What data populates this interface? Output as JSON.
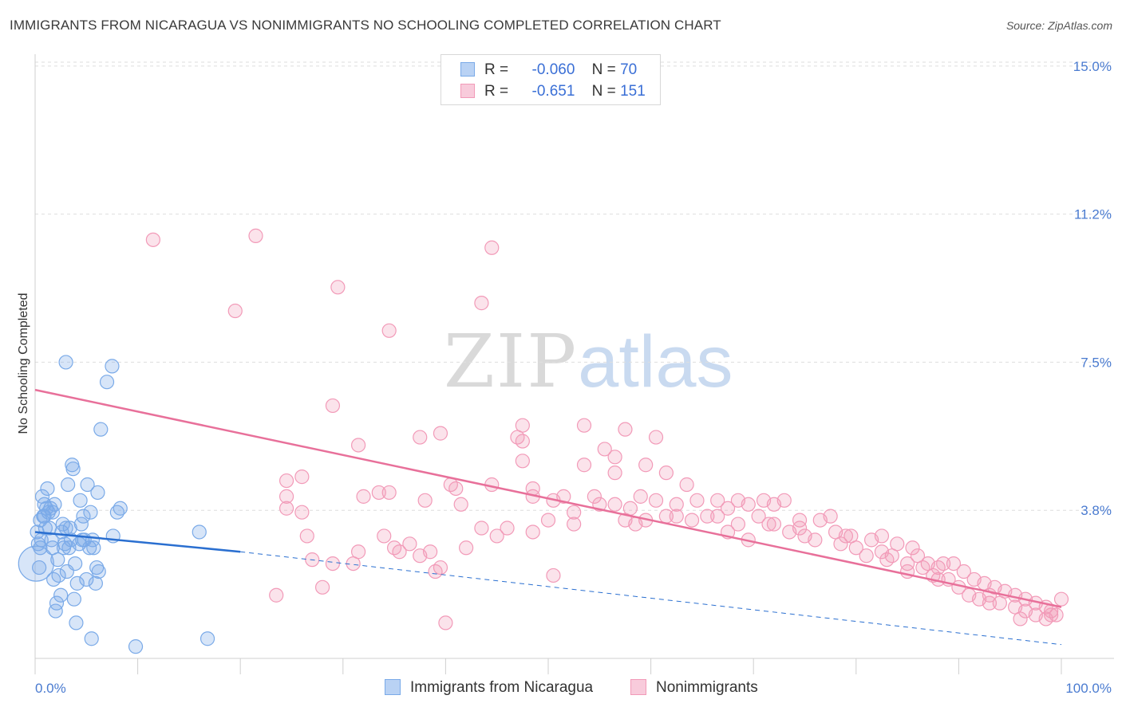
{
  "title": "IMMIGRANTS FROM NICARAGUA VS NONIMMIGRANTS NO SCHOOLING COMPLETED CORRELATION CHART",
  "source": "Source: ZipAtlas.com",
  "watermark": {
    "zip": "ZIP",
    "atlas": "atlas"
  },
  "legend": {
    "r_label": "R =",
    "n_label": "N =",
    "series1": {
      "r": "-0.060",
      "n": "70"
    },
    "series2": {
      "r": "-0.651",
      "n": "151"
    }
  },
  "bottom_legend": {
    "series1": "Immigrants from Nicaragua",
    "series2": "Nonimmigrants"
  },
  "colors": {
    "blue": "#7aaae8",
    "blue_line": "#2a6fd0",
    "pink": "#f29ab8",
    "pink_line": "#e8709a",
    "tick": "#4a7bd0"
  },
  "chart_data": {
    "type": "scatter",
    "xlabel": "",
    "ylabel": "No Schooling Completed",
    "x_ticks": [
      "0.0%",
      "100.0%"
    ],
    "y_ticks": [
      "15.0%",
      "11.2%",
      "7.5%",
      "3.8%"
    ],
    "y_tick_values": [
      15.0,
      11.25,
      7.5,
      3.75
    ],
    "xlim": [
      0,
      100
    ],
    "ylim": [
      0,
      15.3
    ],
    "grid": true,
    "series": [
      {
        "name": "Immigrants from Nicaragua",
        "trend": {
          "x": [
            0,
            20
          ],
          "y": [
            3.2,
            2.7
          ],
          "dashed_to": [
            100,
            0.35
          ]
        },
        "points": [
          [
            0.2,
            3.2
          ],
          [
            0.3,
            2.9
          ],
          [
            0.4,
            2.3
          ],
          [
            0.5,
            3.5
          ],
          [
            0.6,
            3.0
          ],
          [
            0.7,
            4.1
          ],
          [
            0.8,
            3.6
          ],
          [
            0.9,
            3.9
          ],
          [
            1.0,
            3.3
          ],
          [
            1.1,
            3.8
          ],
          [
            1.2,
            4.3
          ],
          [
            1.3,
            3.7
          ],
          [
            1.5,
            3.8
          ],
          [
            1.6,
            3.0
          ],
          [
            1.7,
            2.8
          ],
          [
            1.8,
            2.0
          ],
          [
            1.9,
            3.9
          ],
          [
            2.0,
            1.2
          ],
          [
            2.1,
            1.4
          ],
          [
            2.2,
            2.5
          ],
          [
            2.3,
            2.1
          ],
          [
            2.5,
            1.6
          ],
          [
            2.7,
            3.4
          ],
          [
            2.8,
            2.8
          ],
          [
            3.0,
            3.3
          ],
          [
            3.1,
            2.2
          ],
          [
            3.2,
            4.4
          ],
          [
            3.3,
            2.8
          ],
          [
            3.5,
            3.0
          ],
          [
            3.6,
            4.9
          ],
          [
            3.7,
            4.8
          ],
          [
            3.8,
            1.5
          ],
          [
            3.9,
            2.4
          ],
          [
            4.0,
            0.9
          ],
          [
            4.1,
            1.9
          ],
          [
            4.3,
            2.9
          ],
          [
            4.4,
            4.0
          ],
          [
            4.5,
            3.4
          ],
          [
            4.6,
            3.0
          ],
          [
            4.7,
            3.6
          ],
          [
            4.8,
            3.0
          ],
          [
            5.0,
            2.0
          ],
          [
            5.1,
            4.4
          ],
          [
            5.3,
            2.8
          ],
          [
            5.4,
            3.7
          ],
          [
            5.6,
            3.0
          ],
          [
            5.7,
            2.8
          ],
          [
            5.9,
            1.9
          ],
          [
            6.0,
            2.3
          ],
          [
            6.1,
            4.2
          ],
          [
            6.4,
            5.8
          ],
          [
            7.0,
            7.0
          ],
          [
            7.5,
            7.4
          ],
          [
            7.6,
            3.1
          ],
          [
            8.0,
            3.7
          ],
          [
            8.3,
            3.8
          ],
          [
            9.8,
            0.3
          ],
          [
            16.0,
            3.2
          ],
          [
            16.8,
            0.5
          ],
          [
            3.0,
            7.5
          ],
          [
            5.5,
            0.5
          ],
          [
            2.6,
            3.2
          ],
          [
            1.4,
            3.3
          ],
          [
            0.9,
            3.6
          ],
          [
            0.5,
            2.8
          ],
          [
            2.9,
            2.9
          ],
          [
            3.4,
            3.3
          ],
          [
            6.2,
            2.2
          ],
          [
            1.7,
            3.7
          ],
          [
            0.1,
            2.4
          ]
        ]
      },
      {
        "name": "Nonimmigrants",
        "trend": {
          "x": [
            0,
            100
          ],
          "y": [
            6.8,
            1.3
          ]
        },
        "points": [
          [
            11.5,
            10.6
          ],
          [
            21.5,
            10.7
          ],
          [
            19.5,
            8.8
          ],
          [
            29.5,
            9.4
          ],
          [
            34.5,
            8.3
          ],
          [
            44.5,
            10.4
          ],
          [
            43.5,
            9.0
          ],
          [
            29.0,
            6.4
          ],
          [
            31.5,
            5.4
          ],
          [
            37.5,
            5.6
          ],
          [
            39.5,
            5.7
          ],
          [
            47.0,
            5.6
          ],
          [
            47.5,
            5.5
          ],
          [
            47.5,
            5.9
          ],
          [
            53.5,
            5.9
          ],
          [
            57.5,
            5.8
          ],
          [
            60.5,
            5.6
          ],
          [
            55.5,
            5.3
          ],
          [
            56.5,
            5.1
          ],
          [
            47.5,
            5.0
          ],
          [
            53.5,
            4.9
          ],
          [
            56.5,
            4.7
          ],
          [
            59.5,
            4.9
          ],
          [
            61.5,
            4.7
          ],
          [
            24.5,
            4.5
          ],
          [
            26.0,
            4.6
          ],
          [
            40.5,
            4.4
          ],
          [
            41.0,
            4.3
          ],
          [
            44.5,
            4.4
          ],
          [
            48.5,
            4.3
          ],
          [
            34.5,
            4.2
          ],
          [
            33.5,
            4.2
          ],
          [
            32.0,
            4.1
          ],
          [
            24.5,
            4.1
          ],
          [
            26.0,
            3.7
          ],
          [
            24.5,
            3.8
          ],
          [
            38.0,
            4.0
          ],
          [
            41.5,
            3.9
          ],
          [
            48.5,
            4.1
          ],
          [
            50.5,
            4.0
          ],
          [
            51.5,
            4.1
          ],
          [
            54.5,
            4.1
          ],
          [
            56.5,
            3.9
          ],
          [
            59.0,
            4.1
          ],
          [
            60.5,
            4.0
          ],
          [
            62.5,
            3.9
          ],
          [
            63.5,
            4.4
          ],
          [
            64.5,
            4.0
          ],
          [
            66.5,
            4.0
          ],
          [
            67.5,
            3.8
          ],
          [
            68.5,
            4.0
          ],
          [
            69.5,
            3.9
          ],
          [
            71.0,
            4.0
          ],
          [
            72.0,
            3.9
          ],
          [
            73.0,
            4.0
          ],
          [
            65.5,
            3.6
          ],
          [
            66.5,
            3.6
          ],
          [
            68.5,
            3.4
          ],
          [
            70.5,
            3.6
          ],
          [
            72.0,
            3.4
          ],
          [
            74.5,
            3.5
          ],
          [
            76.5,
            3.5
          ],
          [
            77.5,
            3.6
          ],
          [
            73.5,
            3.2
          ],
          [
            78.0,
            3.2
          ],
          [
            79.5,
            3.1
          ],
          [
            79.0,
            3.1
          ],
          [
            81.5,
            3.0
          ],
          [
            82.5,
            3.1
          ],
          [
            84.0,
            2.9
          ],
          [
            85.5,
            2.8
          ],
          [
            86.0,
            2.6
          ],
          [
            87.0,
            2.4
          ],
          [
            88.0,
            2.3
          ],
          [
            88.5,
            2.4
          ],
          [
            89.5,
            2.4
          ],
          [
            90.5,
            2.2
          ],
          [
            91.5,
            2.0
          ],
          [
            92.5,
            1.9
          ],
          [
            93.5,
            1.8
          ],
          [
            94.5,
            1.7
          ],
          [
            95.5,
            1.6
          ],
          [
            96.5,
            1.5
          ],
          [
            97.5,
            1.4
          ],
          [
            98.5,
            1.3
          ],
          [
            99.0,
            1.2
          ],
          [
            100.0,
            1.5
          ],
          [
            95.5,
            1.3
          ],
          [
            96.5,
            1.2
          ],
          [
            97.5,
            1.1
          ],
          [
            98.5,
            1.0
          ],
          [
            99.5,
            1.1
          ],
          [
            94.0,
            1.4
          ],
          [
            93.0,
            1.6
          ],
          [
            92.0,
            1.5
          ],
          [
            91.0,
            1.6
          ],
          [
            90.0,
            1.8
          ],
          [
            89.0,
            2.0
          ],
          [
            87.5,
            2.1
          ],
          [
            86.5,
            2.3
          ],
          [
            85.0,
            2.4
          ],
          [
            83.5,
            2.6
          ],
          [
            82.5,
            2.7
          ],
          [
            81.0,
            2.6
          ],
          [
            80.0,
            2.8
          ],
          [
            78.5,
            2.9
          ],
          [
            76.0,
            3.0
          ],
          [
            75.0,
            3.1
          ],
          [
            74.5,
            3.3
          ],
          [
            71.5,
            3.4
          ],
          [
            69.5,
            3.0
          ],
          [
            67.5,
            3.2
          ],
          [
            61.5,
            3.6
          ],
          [
            58.5,
            3.4
          ],
          [
            52.5,
            3.4
          ],
          [
            50.0,
            3.5
          ],
          [
            48.5,
            3.2
          ],
          [
            46.0,
            3.3
          ],
          [
            45.0,
            3.1
          ],
          [
            43.5,
            3.3
          ],
          [
            42.0,
            2.8
          ],
          [
            38.5,
            2.7
          ],
          [
            36.5,
            2.9
          ],
          [
            35.5,
            2.7
          ],
          [
            34.0,
            3.1
          ],
          [
            31.5,
            2.7
          ],
          [
            29.0,
            2.4
          ],
          [
            27.0,
            2.5
          ],
          [
            28.0,
            1.8
          ],
          [
            26.5,
            3.1
          ],
          [
            23.5,
            1.6
          ],
          [
            31.0,
            2.4
          ],
          [
            37.5,
            2.6
          ],
          [
            39.0,
            2.2
          ],
          [
            39.5,
            2.3
          ],
          [
            35.0,
            2.8
          ],
          [
            50.5,
            2.1
          ],
          [
            57.5,
            3.5
          ],
          [
            55.0,
            3.9
          ],
          [
            58.0,
            3.8
          ],
          [
            52.5,
            3.7
          ],
          [
            40.0,
            0.9
          ],
          [
            59.5,
            3.5
          ],
          [
            62.5,
            3.6
          ],
          [
            64.0,
            3.5
          ],
          [
            85.0,
            2.2
          ],
          [
            88.0,
            2.0
          ],
          [
            93.0,
            1.4
          ],
          [
            96.0,
            1.0
          ],
          [
            99.0,
            1.1
          ],
          [
            83.0,
            2.5
          ]
        ]
      }
    ]
  }
}
